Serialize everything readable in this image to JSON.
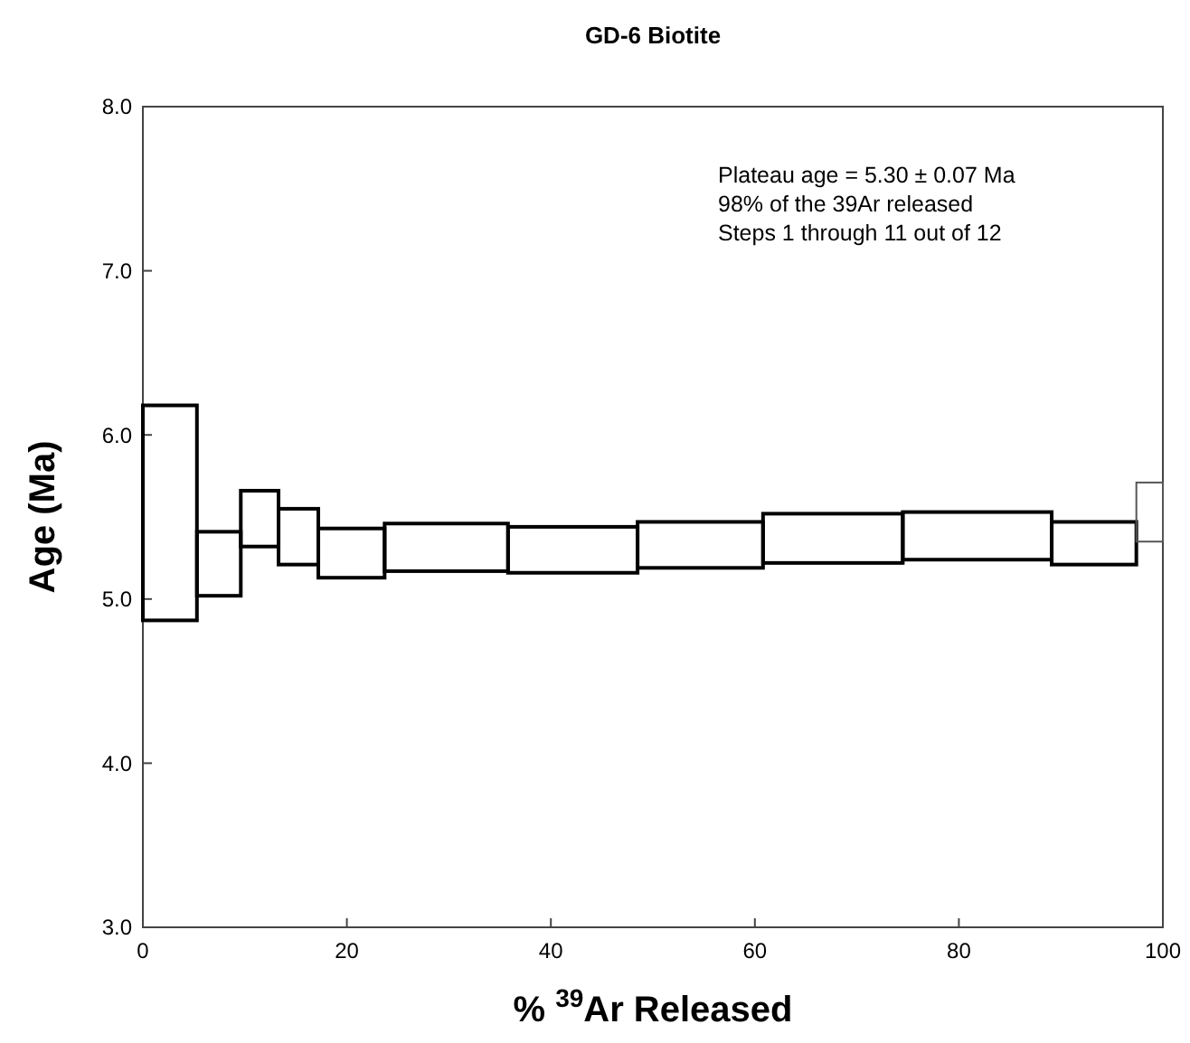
{
  "chart_data": {
    "type": "histogram",
    "title": "GD-6 Biotite",
    "xlabel": "% $^{39}$Ar Released",
    "ylabel": "Age (Ma)",
    "bins": [
      0,
      5.3,
      9.6,
      13.3,
      17.2,
      23.7,
      35.8,
      48.5,
      60.8,
      74.5,
      89.1,
      97.4,
      100
    ],
    "base": [
      4.87,
      5.02,
      5.32,
      5.21,
      5.13,
      5.17,
      5.16,
      5.19,
      5.22,
      5.24,
      5.21,
      5.35
    ],
    "values": [
      1.31,
      0.39,
      0.34,
      0.34,
      0.3,
      0.29,
      0.28,
      0.28,
      0.3,
      0.29,
      0.26,
      0.36
    ],
    "colors": [
      "#000000",
      "#000000",
      "#000000",
      "#000000",
      "#000000",
      "#000000",
      "#000000",
      "#000000",
      "#000000",
      "#000000",
      "#000000",
      "#555555"
    ],
    "xlim": [
      0,
      100
    ],
    "xticks": [
      0,
      20,
      40,
      60,
      80,
      100
    ],
    "ylim": [
      3,
      8
    ],
    "yticks": [
      {
        "value": 3,
        "label": "3.0"
      },
      {
        "value": 4,
        "label": "4.0"
      },
      {
        "value": 5,
        "label": "5.0"
      },
      {
        "value": 6,
        "label": "6.0"
      },
      {
        "value": 7,
        "label": "7.0"
      },
      {
        "value": 8,
        "label": "8.0"
      }
    ],
    "annotations": [
      "Plateau age = 5.30 ± 0.07 Ma",
      "98% of the 39Ar released",
      "Steps 1 through 11 out of 12"
    ]
  }
}
